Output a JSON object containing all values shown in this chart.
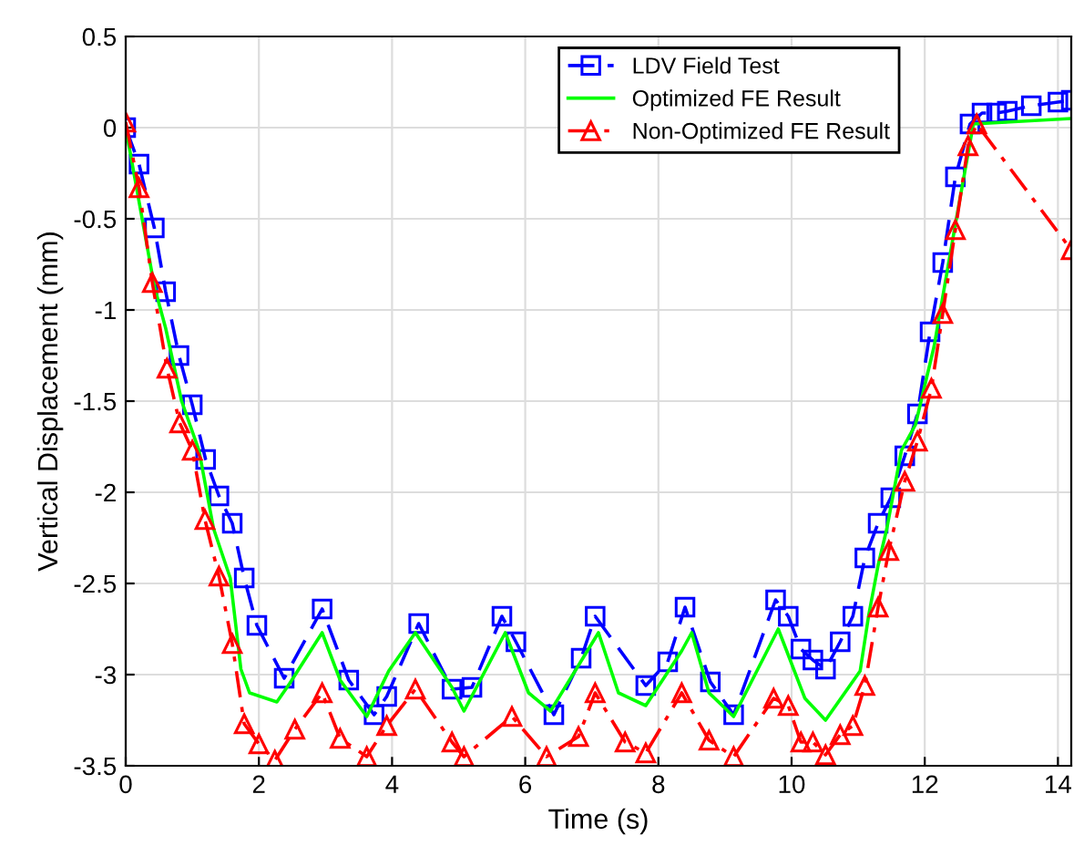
{
  "chart_data": {
    "type": "line",
    "xlabel": "Time (s)",
    "ylabel": "Vertical Displacement (mm)",
    "xlim": [
      0,
      14.2
    ],
    "ylim": [
      -3.5,
      0.5
    ],
    "xticks": [
      0,
      2,
      4,
      6,
      8,
      10,
      12,
      14
    ],
    "yticks": [
      -3.5,
      -3,
      -2.5,
      -2,
      -1.5,
      -1,
      -0.5,
      0,
      0.5
    ],
    "grid": true,
    "legend": "top right",
    "series": [
      {
        "name": "LDV Field Test",
        "color": "#0000ff",
        "marker": "square",
        "line_style": "dashed",
        "x": [
          0,
          0.2,
          0.43,
          0.6,
          0.8,
          1.0,
          1.2,
          1.4,
          1.6,
          1.78,
          1.97,
          2.38,
          2.95,
          3.35,
          3.73,
          3.92,
          4.4,
          4.9,
          5.2,
          5.65,
          5.86,
          6.43,
          6.84,
          7.05,
          7.81,
          8.14,
          8.4,
          8.78,
          9.13,
          9.76,
          9.95,
          10.14,
          10.32,
          10.51,
          10.73,
          10.92,
          11.1,
          11.3,
          11.49,
          11.7,
          11.89,
          12.08,
          12.27,
          12.46,
          12.68,
          12.86,
          13.08,
          13.24,
          13.6,
          14.0,
          14.2
        ],
        "values": [
          0,
          -0.2,
          -0.55,
          -0.9,
          -1.25,
          -1.52,
          -1.82,
          -2.02,
          -2.17,
          -2.47,
          -2.73,
          -3.02,
          -2.64,
          -3.03,
          -3.22,
          -3.12,
          -2.72,
          -3.08,
          -3.07,
          -2.68,
          -2.82,
          -3.22,
          -2.91,
          -2.68,
          -3.06,
          -2.93,
          -2.63,
          -3.04,
          -3.22,
          -2.59,
          -2.68,
          -2.86,
          -2.92,
          -2.97,
          -2.82,
          -2.68,
          -2.36,
          -2.17,
          -2.03,
          -1.8,
          -1.57,
          -1.12,
          -0.74,
          -0.27,
          0.02,
          0.08,
          0.08,
          0.09,
          0.12,
          0.14,
          0.15
        ]
      },
      {
        "name": "Optimized FE Result",
        "color": "#00ff00",
        "marker": "none",
        "line_style": "solid",
        "x": [
          0,
          0.43,
          0.6,
          0.84,
          1.1,
          1.32,
          1.57,
          1.73,
          1.86,
          2.27,
          2.46,
          2.95,
          3.22,
          3.62,
          3.95,
          4.35,
          4.9,
          5.08,
          5.7,
          6.05,
          6.38,
          7.1,
          7.4,
          7.81,
          8.35,
          8.5,
          8.76,
          9.13,
          9.8,
          10.2,
          10.51,
          11.03,
          11.16,
          11.3,
          11.43,
          11.65,
          11.86,
          12.14,
          12.46,
          12.73,
          14.2
        ],
        "values": [
          0,
          -0.87,
          -1.1,
          -1.5,
          -1.77,
          -2.2,
          -2.47,
          -2.97,
          -3.1,
          -3.15,
          -3.05,
          -2.77,
          -3.03,
          -3.23,
          -2.98,
          -2.77,
          -3.07,
          -3.2,
          -2.77,
          -3.1,
          -3.2,
          -2.77,
          -3.1,
          -3.17,
          -2.87,
          -2.77,
          -3.1,
          -3.23,
          -2.75,
          -3.13,
          -3.25,
          -2.98,
          -2.67,
          -2.4,
          -2.2,
          -1.77,
          -1.63,
          -1.2,
          -0.53,
          0.02,
          0.05
        ]
      },
      {
        "name": "Non-Optimized FE Result",
        "color": "#ff0000",
        "marker": "triangle",
        "line_style": "dashdot",
        "x": [
          0,
          0.2,
          0.4,
          0.62,
          0.81,
          1.0,
          1.19,
          1.4,
          1.6,
          1.78,
          2.0,
          2.24,
          2.54,
          2.95,
          3.22,
          3.62,
          3.92,
          4.35,
          4.9,
          5.08,
          5.8,
          6.32,
          6.8,
          7.05,
          7.5,
          7.81,
          8.35,
          8.76,
          9.13,
          9.73,
          9.95,
          10.14,
          10.32,
          10.51,
          10.73,
          10.92,
          11.1,
          11.3,
          11.46,
          11.7,
          11.89,
          12.1,
          12.27,
          12.46,
          12.65,
          12.78,
          14.2
        ],
        "values": [
          0.03,
          -0.33,
          -0.85,
          -1.32,
          -1.62,
          -1.77,
          -2.15,
          -2.46,
          -2.83,
          -3.27,
          -3.38,
          -3.47,
          -3.3,
          -3.1,
          -3.35,
          -3.45,
          -3.28,
          -3.08,
          -3.37,
          -3.45,
          -3.23,
          -3.45,
          -3.34,
          -3.1,
          -3.37,
          -3.43,
          -3.1,
          -3.36,
          -3.45,
          -3.13,
          -3.17,
          -3.37,
          -3.37,
          -3.44,
          -3.33,
          -3.28,
          -3.06,
          -2.63,
          -2.32,
          -1.94,
          -1.72,
          -1.43,
          -1.02,
          -0.56,
          -0.1,
          0.02,
          -0.67
        ]
      }
    ]
  }
}
